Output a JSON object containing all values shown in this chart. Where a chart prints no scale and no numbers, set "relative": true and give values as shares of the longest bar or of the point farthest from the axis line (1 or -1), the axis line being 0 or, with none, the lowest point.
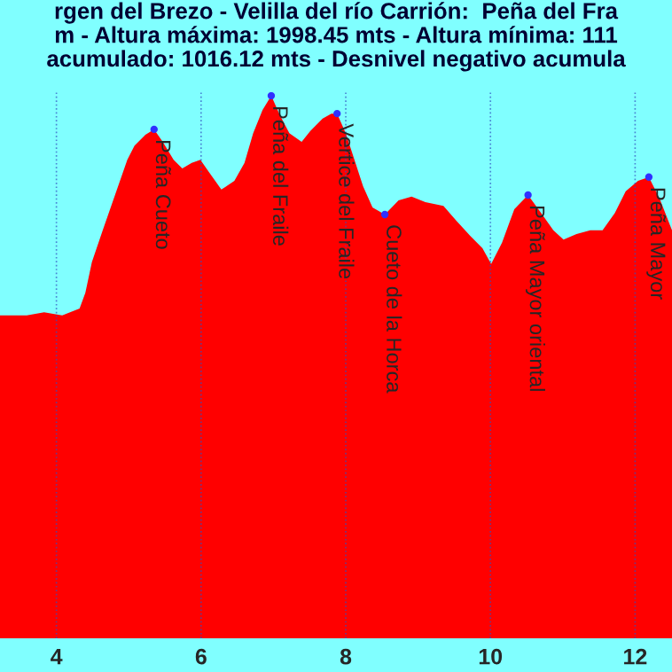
{
  "chart_data": {
    "type": "area",
    "title": "rgen del Brezo - Velilla del río Carrión:  Peña del Fra\nm - Altura máxima: 1998.45 mts - Altura mínima: 111\nacumulado: 1016.12 mts - Desnivel negativo acumula",
    "relative": true,
    "grid": true,
    "xlim": [
      3.22,
      12.51
    ],
    "xticks": [
      4,
      6,
      8,
      10,
      12
    ],
    "series": [
      {
        "color": "#ff0000",
        "x": [
          3.22,
          3.59,
          3.83,
          4.08,
          4.32,
          4.4,
          4.49,
          4.64,
          4.81,
          4.98,
          5.08,
          5.23,
          5.35,
          5.47,
          5.62,
          5.74,
          5.87,
          5.99,
          6.11,
          6.28,
          6.46,
          6.6,
          6.72,
          6.85,
          6.97,
          7.09,
          7.22,
          7.39,
          7.51,
          7.68,
          7.8,
          7.88,
          8.0,
          8.12,
          8.24,
          8.37,
          8.54,
          8.73,
          8.91,
          9.1,
          9.35,
          9.54,
          9.72,
          9.89,
          10.01,
          10.16,
          10.33,
          10.52,
          10.7,
          10.87,
          11.01,
          11.19,
          11.38,
          11.55,
          11.72,
          11.87,
          12.04,
          12.19,
          12.34,
          12.51
        ],
        "values": [
          0.595,
          0.595,
          0.601,
          0.595,
          0.608,
          0.637,
          0.693,
          0.752,
          0.817,
          0.882,
          0.908,
          0.928,
          0.938,
          0.915,
          0.882,
          0.866,
          0.876,
          0.882,
          0.859,
          0.827,
          0.843,
          0.876,
          0.931,
          0.974,
          1,
          0.964,
          0.931,
          0.915,
          0.935,
          0.958,
          0.967,
          0.967,
          0.931,
          0.882,
          0.833,
          0.794,
          0.781,
          0.807,
          0.814,
          0.804,
          0.797,
          0.768,
          0.742,
          0.719,
          0.69,
          0.729,
          0.791,
          0.817,
          0.784,
          0.752,
          0.735,
          0.745,
          0.752,
          0.752,
          0.784,
          0.824,
          0.843,
          0.85,
          0.81,
          0.752
        ]
      }
    ],
    "annotations": [
      {
        "text": "Peña Cueto",
        "x": 5.35,
        "y": 0.938
      },
      {
        "text": "Peña del Fraile",
        "x": 6.97,
        "y": 1
      },
      {
        "text": "Vertice del Fraile",
        "x": 7.88,
        "y": 0.967
      },
      {
        "text": "Cueto de la Horca",
        "x": 8.54,
        "y": 0.781
      },
      {
        "text": "Peña Mayor oriental",
        "x": 10.52,
        "y": 0.817
      },
      {
        "text": "Peña Mayor",
        "x": 12.19,
        "y": 0.85
      }
    ]
  }
}
